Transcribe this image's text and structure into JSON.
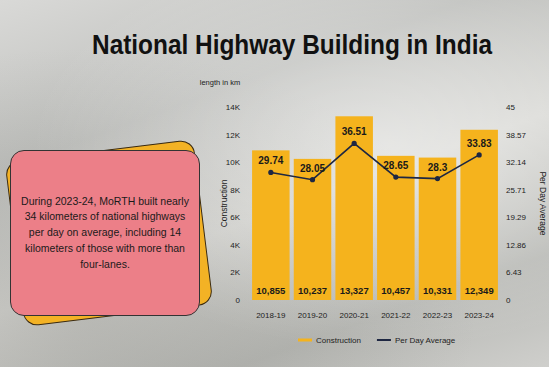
{
  "chart_data": {
    "type": "bar",
    "title": "National Highway Building in India",
    "subtitle": "length in km",
    "y_label": "Construction",
    "y2_label": "Per Day Average",
    "annotation": "During 2023-24, MoRTH built nearly 34 kilometers of national highways per day on average, including 14 kilometers of those with more than four-lanes.",
    "categories": [
      "2018-19",
      "2019-20",
      "2020-21",
      "2021-22",
      "2022-23",
      "2023-24"
    ],
    "series": [
      {
        "name": "Construction",
        "type": "bar",
        "color": "#f5b31d",
        "values": [
          10855,
          10237,
          13327,
          10457,
          10331,
          12349
        ],
        "value_labels": [
          "10,855",
          "10,237",
          "13,327",
          "10,457",
          "10,331",
          "12,349"
        ]
      },
      {
        "name": "Per Day Average",
        "type": "line",
        "axis": "y2",
        "color": "#1e2742",
        "marker": "circle",
        "values": [
          29.74,
          28.05,
          36.51,
          28.65,
          28.3,
          33.83
        ]
      }
    ],
    "ylim": [
      0,
      14000
    ],
    "yticks": [
      0,
      {
        "value": 2000,
        "label": "2K"
      },
      {
        "value": 4000,
        "label": "4K"
      },
      {
        "value": 6000,
        "label": "6K"
      },
      {
        "value": 8000,
        "label": "8K"
      },
      {
        "value": 10000,
        "label": "10K"
      },
      {
        "value": 12000,
        "label": "12K"
      },
      {
        "value": 14000,
        "label": "14K"
      }
    ],
    "y2lim": [
      0,
      45
    ],
    "y2ticks": [
      0,
      6.43,
      12.86,
      19.29,
      25.71,
      32.14,
      38.57,
      45
    ],
    "data_labels": true,
    "legend": "bottom",
    "grid": false
  }
}
